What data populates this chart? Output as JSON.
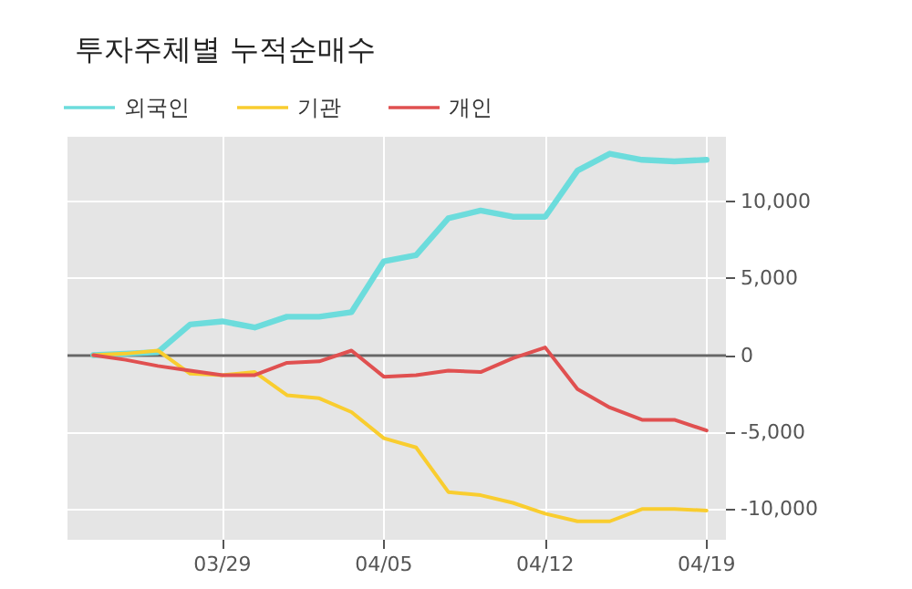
{
  "chart_data": {
    "type": "line",
    "title": "투자주체별 누적순매수",
    "categories": [
      null,
      null,
      null,
      null,
      "03/29",
      null,
      null,
      null,
      null,
      "04/05",
      null,
      null,
      null,
      null,
      "04/12",
      null,
      null,
      null,
      null,
      "04/19"
    ],
    "series": [
      {
        "name": "외국인",
        "color": "#6cdcdc",
        "values": [
          0,
          100,
          200,
          2000,
          2200,
          1800,
          2500,
          2500,
          2800,
          6100,
          6500,
          8900,
          9400,
          9000,
          9000,
          12000,
          13100,
          12700,
          12600,
          12700
        ]
      },
      {
        "name": "기관",
        "color": "#f9cd2f",
        "values": [
          0,
          100,
          300,
          -1200,
          -1300,
          -1100,
          -2600,
          -2800,
          -3700,
          -5400,
          -6000,
          -8900,
          -9100,
          -9600,
          -10300,
          -10800,
          -10800,
          -10000,
          -10000,
          -10100
        ]
      },
      {
        "name": "개인",
        "color": "#e05050",
        "values": [
          0,
          -300,
          -700,
          -1000,
          -1300,
          -1300,
          -500,
          -400,
          300,
          -1400,
          -1300,
          -1000,
          -1100,
          -200,
          500,
          -2200,
          -3400,
          -4200,
          -4200,
          -4900
        ]
      }
    ],
    "ylim": [
      -12000,
      14200
    ],
    "yticks": [
      {
        "value": -10000,
        "label": "-10,000"
      },
      {
        "value": -5000,
        "label": "-5,000"
      },
      0,
      {
        "value": 5000,
        "label": "5,000"
      },
      {
        "value": 10000,
        "label": "10,000"
      }
    ],
    "ref_lines": [
      {
        "axis": "y",
        "value": 0,
        "color": "#666666"
      }
    ],
    "grid": true,
    "legend": "top left",
    "marker": "none",
    "line_style": "solid"
  }
}
